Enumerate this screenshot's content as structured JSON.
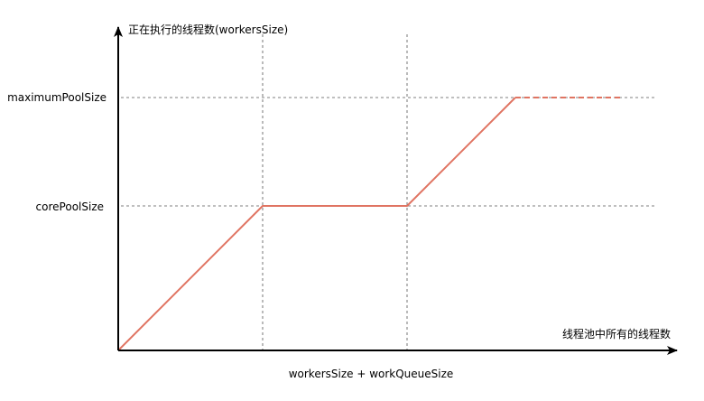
{
  "diagram": {
    "y_axis_title": "正在执行的线程数(workersSize)",
    "x_axis_title": "线程池中所有的线程数",
    "x_axis_caption": "workersSize + workQueueSize",
    "levels": {
      "maximum": "maximumPoolSize",
      "core": "corePoolSize"
    },
    "colors": {
      "curve": "#e07462",
      "axis": "#000000",
      "guide": "#555555"
    }
  }
}
